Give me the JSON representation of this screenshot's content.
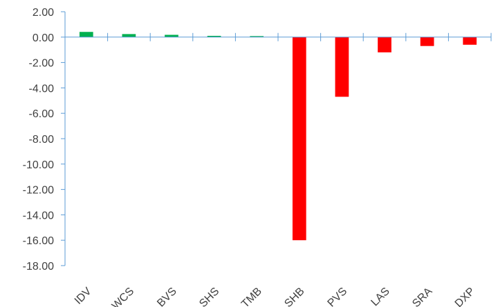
{
  "chart_data": {
    "type": "bar",
    "categories": [
      "IDV",
      "WCS",
      "BVS",
      "SHS",
      "TMB",
      "SHB",
      "PVS",
      "LAS",
      "SRA",
      "DXP"
    ],
    "values": [
      0.41,
      0.24,
      0.18,
      0.1,
      0.08,
      -16.0,
      -4.7,
      -1.2,
      -0.7,
      -0.6
    ],
    "y_ticks": [
      "2.00",
      "0.00",
      "-2.00",
      "-4.00",
      "-6.00",
      "-8.00",
      "-10.00",
      "-12.00",
      "-14.00",
      "-16.00",
      "-18.00"
    ],
    "ylim": [
      -18,
      2
    ],
    "grid": false,
    "colors": {
      "positive": "#00b050",
      "negative": "#ff0000",
      "axis": "#5b9bd5",
      "text": "#404040"
    }
  }
}
